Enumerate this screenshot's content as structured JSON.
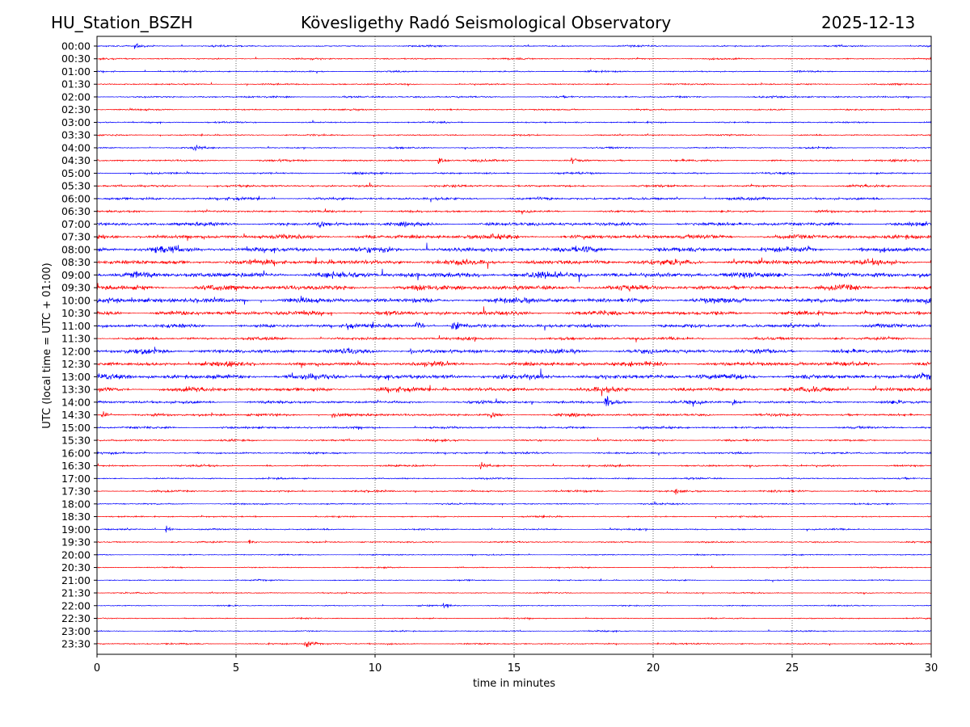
{
  "header": {
    "station": "HU_Station_BSZH",
    "observatory": "Kövesligethy Radó Seismological Observatory",
    "date": "2025-12-13"
  },
  "chart_data": {
    "type": "line",
    "title": "Kövesligethy Radó Seismological Observatory",
    "xlabel": "time in minutes",
    "ylabel": "UTC (local time = UTC + 01:00)",
    "xlim": [
      0,
      30
    ],
    "xticks": [
      "0",
      "5",
      "10",
      "15",
      "20",
      "25",
      "30"
    ],
    "grid": "vertical dotted at 5-minute intervals",
    "colors": [
      "#0000ff",
      "#ff0000"
    ],
    "rows": [
      "00:00",
      "00:30",
      "01:00",
      "01:30",
      "02:00",
      "02:30",
      "03:00",
      "03:30",
      "04:00",
      "04:30",
      "05:00",
      "05:30",
      "06:00",
      "06:30",
      "07:00",
      "07:30",
      "08:00",
      "08:30",
      "09:00",
      "09:30",
      "10:00",
      "10:30",
      "11:00",
      "11:30",
      "12:00",
      "12:30",
      "13:00",
      "13:30",
      "14:00",
      "14:30",
      "15:00",
      "15:30",
      "16:00",
      "16:30",
      "17:00",
      "17:30",
      "18:00",
      "18:30",
      "19:00",
      "19:30",
      "20:00",
      "20:30",
      "21:00",
      "21:30",
      "22:00",
      "22:30",
      "23:00",
      "23:30"
    ],
    "noise_level": [
      1,
      1,
      1,
      1,
      1.2,
      1,
      1,
      1,
      1,
      1.3,
      1.3,
      1.5,
      1.8,
      1.5,
      2.5,
      3,
      3.5,
      3.5,
      4,
      3.5,
      3.5,
      3,
      2.5,
      2,
      3,
      3,
      3.5,
      3,
      2,
      1.8,
      1.5,
      1.3,
      1.3,
      1.3,
      1,
      1.3,
      1,
      1,
      1,
      1,
      0.8,
      0.8,
      0.8,
      0.8,
      0.8,
      0.8,
      0.8,
      1
    ],
    "events": [
      {
        "row": 0,
        "minute": 1.4,
        "amp": 4
      },
      {
        "row": 8,
        "minute": 3.5,
        "amp": 3
      },
      {
        "row": 9,
        "minute": 12.3,
        "amp": 6
      },
      {
        "row": 9,
        "minute": 17.1,
        "amp": 4
      },
      {
        "row": 14,
        "minute": 8,
        "amp": 5
      },
      {
        "row": 16,
        "minute": 2.1,
        "amp": 6
      },
      {
        "row": 22,
        "minute": 9,
        "amp": 5
      },
      {
        "row": 22,
        "minute": 11.5,
        "amp": 8
      },
      {
        "row": 22,
        "minute": 12.8,
        "amp": 7
      },
      {
        "row": 24,
        "minute": 11.3,
        "amp": 5
      },
      {
        "row": 28,
        "minute": 18.3,
        "amp": 11
      },
      {
        "row": 28,
        "minute": 22.9,
        "amp": 5
      },
      {
        "row": 29,
        "minute": 0.2,
        "amp": 5
      },
      {
        "row": 29,
        "minute": 8.5,
        "amp": 4
      },
      {
        "row": 29,
        "minute": 14.2,
        "amp": 4
      },
      {
        "row": 33,
        "minute": 13.8,
        "amp": 4
      },
      {
        "row": 35,
        "minute": 20.8,
        "amp": 4
      },
      {
        "row": 38,
        "minute": 2.5,
        "amp": 4
      },
      {
        "row": 39,
        "minute": 5.5,
        "amp": 4
      },
      {
        "row": 44,
        "minute": 12.5,
        "amp": 3
      },
      {
        "row": 47,
        "minute": 7.5,
        "amp": 7
      }
    ]
  }
}
